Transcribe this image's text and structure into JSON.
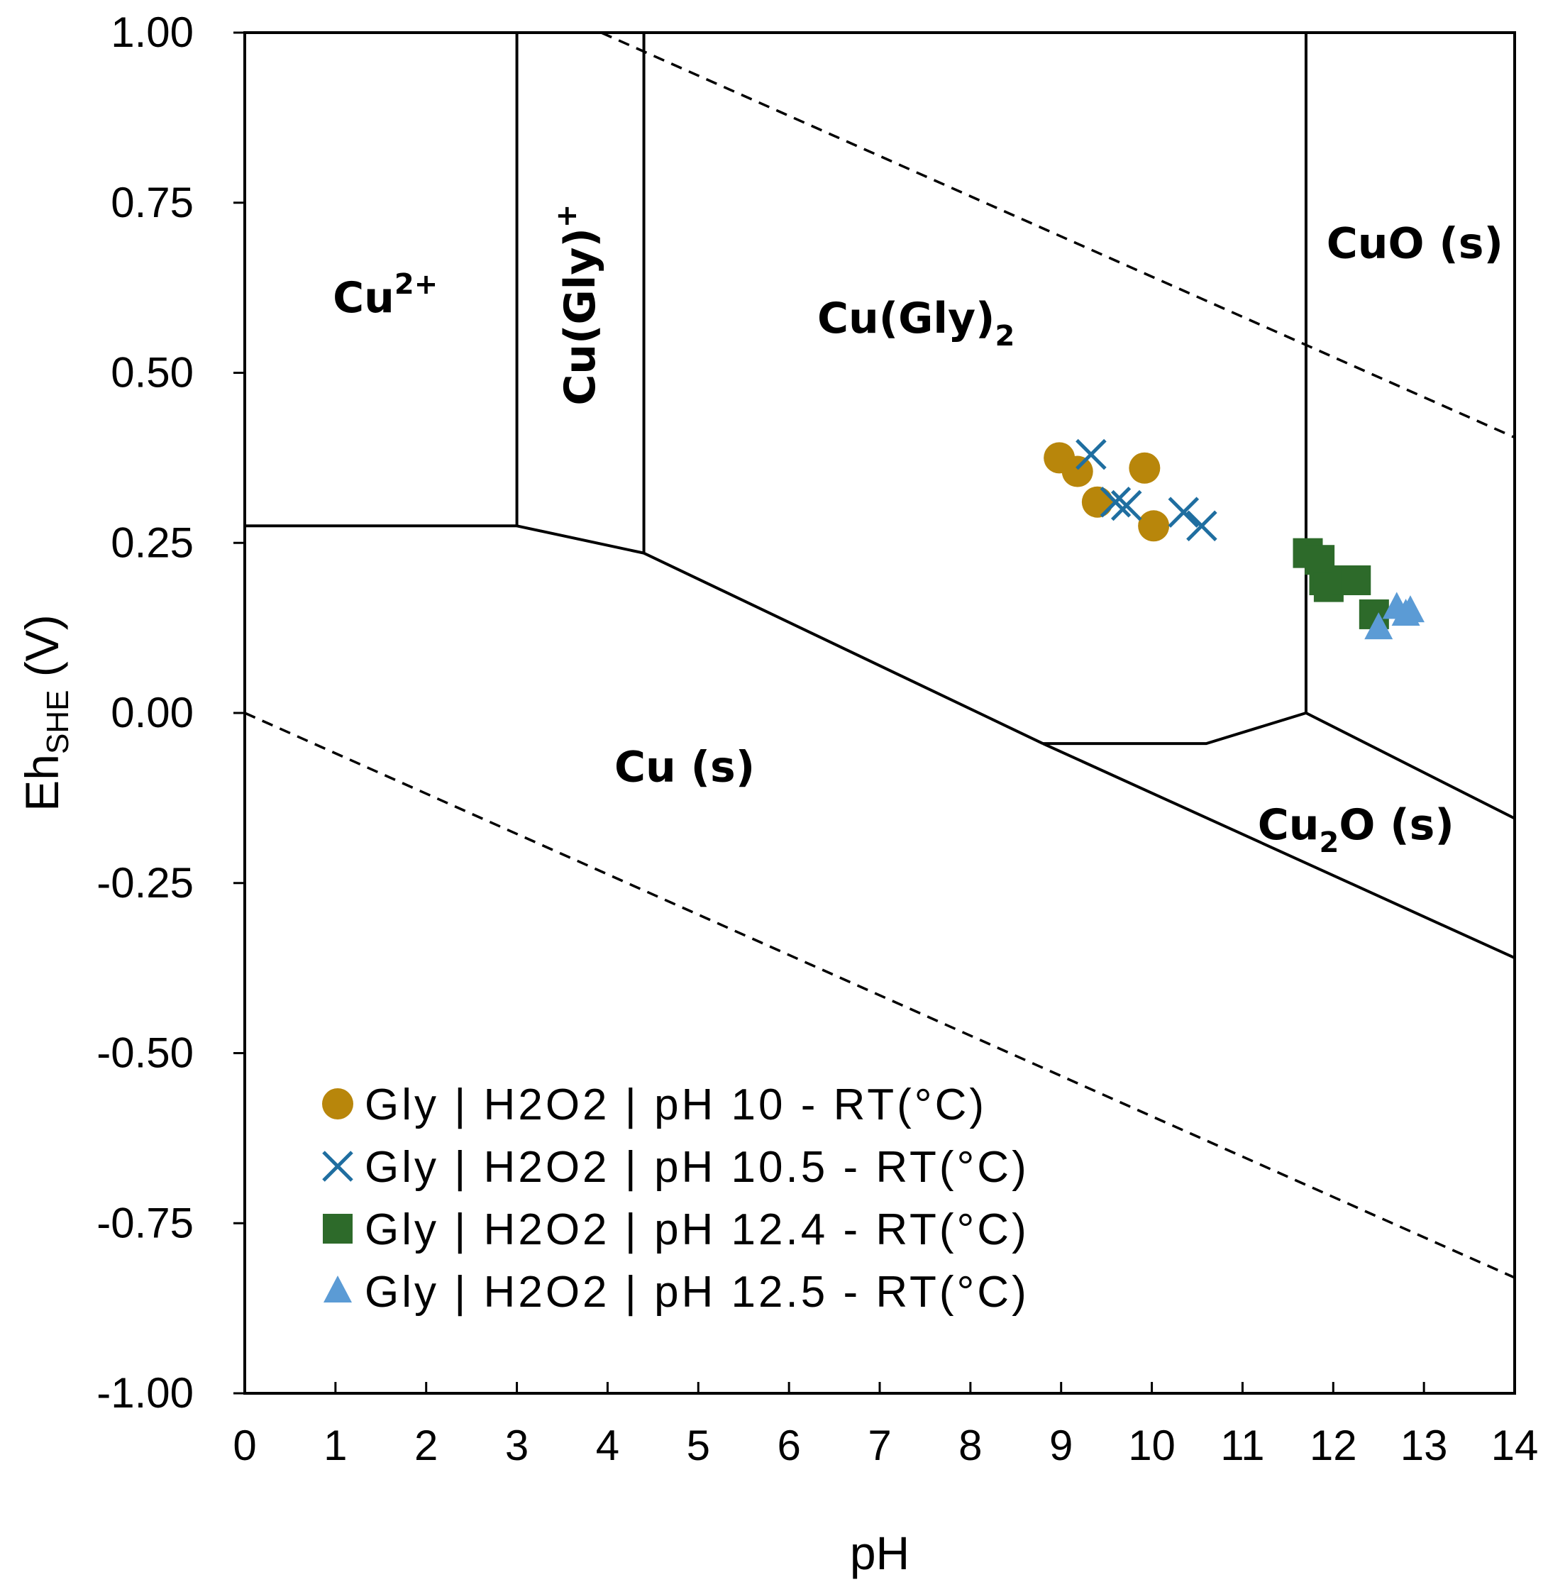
{
  "chart_data": {
    "type": "scatter",
    "subtype": "pourbaix-diagram",
    "xlabel": "pH",
    "ylabel": "Eh",
    "ylabel_sub": "SHE",
    "ylabel_unit": " (V)",
    "xlim": [
      0,
      14
    ],
    "ylim": [
      -1.0,
      1.0
    ],
    "x_ticks": [
      0,
      1,
      2,
      3,
      4,
      5,
      6,
      7,
      8,
      9,
      10,
      11,
      12,
      13,
      14
    ],
    "x_tick_labels": [
      "0",
      "1",
      "2",
      "3",
      "4",
      "5",
      "6",
      "7",
      "8",
      "9",
      "10",
      "11",
      "12",
      "13",
      "14"
    ],
    "y_ticks": [
      1.0,
      0.75,
      0.5,
      0.25,
      0.0,
      -0.25,
      -0.5,
      -0.75,
      -1.0
    ],
    "y_tick_labels": [
      "1.00",
      "0.75",
      "0.50",
      "0.25",
      "0.00",
      "-0.25",
      "-0.50",
      "-0.75",
      "-1.00"
    ],
    "grid": false,
    "legend_position": "bottom-left",
    "boundaries": [
      {
        "name": "cu2-cu-boundary",
        "points": [
          [
            0,
            0.275
          ],
          [
            3,
            0.275
          ]
        ]
      },
      {
        "name": "cu2-cugly-boundary",
        "points": [
          [
            3,
            0.275
          ],
          [
            3,
            1.0
          ]
        ]
      },
      {
        "name": "cugly-cugly2-boundary",
        "points": [
          [
            4.4,
            0.235
          ],
          [
            4.4,
            1.0
          ]
        ]
      },
      {
        "name": "cugly-cu-boundary",
        "points": [
          [
            3,
            0.275
          ],
          [
            4.4,
            0.235
          ]
        ]
      },
      {
        "name": "cugly2-cu-boundary",
        "points": [
          [
            4.4,
            0.235
          ],
          [
            8.8,
            -0.045
          ]
        ]
      },
      {
        "name": "cu-cu2o-boundary",
        "points": [
          [
            8.8,
            -0.045
          ],
          [
            14,
            -0.36
          ]
        ]
      },
      {
        "name": "cugly2-cu2o-boundary",
        "points": [
          [
            8.8,
            -0.045
          ],
          [
            10.6,
            -0.045
          ],
          [
            11.7,
            0.0
          ]
        ]
      },
      {
        "name": "cugly2-cuo-boundary",
        "points": [
          [
            11.7,
            0.0
          ],
          [
            11.7,
            1.0
          ]
        ]
      },
      {
        "name": "cu2o-cuo-boundary",
        "points": [
          [
            11.7,
            0.0
          ],
          [
            14,
            -0.155
          ]
        ]
      }
    ],
    "water_lines": [
      {
        "name": "oxygen-stability-line",
        "points": [
          [
            3.93,
            1.0
          ],
          [
            14,
            0.405
          ]
        ]
      },
      {
        "name": "hydrogen-stability-line",
        "points": [
          [
            0,
            0.0
          ],
          [
            14,
            -0.83
          ]
        ]
      }
    ],
    "region_labels": [
      {
        "base": "Cu",
        "sup": "2+",
        "sub": "",
        "suffix": "",
        "x": 1.55,
        "y": 0.61,
        "rotate": false
      },
      {
        "base": "Cu(Gly)",
        "sup": "+",
        "sub": "",
        "suffix": "",
        "x": 3.7,
        "y": 0.6,
        "rotate": true
      },
      {
        "base": "Cu(Gly)",
        "sup": "",
        "sub": "2",
        "suffix": "",
        "x": 7.4,
        "y": 0.58,
        "rotate": false
      },
      {
        "base": "CuO",
        "sup": "",
        "sub": "",
        "suffix": " (s)",
        "x": 12.9,
        "y": 0.69,
        "rotate": false
      },
      {
        "base": "Cu",
        "sup": "",
        "sub": "",
        "suffix": " (s)",
        "x": 4.85,
        "y": -0.08,
        "rotate": false
      },
      {
        "base": "Cu",
        "sup": "",
        "sub": "2",
        "suffix": "O (s)",
        "x": 12.25,
        "y": -0.165,
        "rotate": false
      }
    ],
    "series": [
      {
        "name": "Gly | H2O2 | pH 10 - RT(°C)",
        "marker": "circle",
        "color": "#b8860b",
        "points": [
          [
            8.98,
            0.375
          ],
          [
            9.18,
            0.355
          ],
          [
            9.4,
            0.31
          ],
          [
            9.92,
            0.36
          ],
          [
            10.02,
            0.275
          ]
        ]
      },
      {
        "name": "Gly | H2O2 | pH 10.5 - RT(°C)",
        "marker": "x",
        "color": "#1f6ea0",
        "points": [
          [
            9.33,
            0.38
          ],
          [
            9.6,
            0.31
          ],
          [
            9.72,
            0.305
          ],
          [
            10.35,
            0.295
          ],
          [
            10.55,
            0.275
          ]
        ]
      },
      {
        "name": "Gly | H2O2 | pH 12.4 - RT(°C)",
        "marker": "square",
        "color": "#2d6a2a",
        "points": [
          [
            11.72,
            0.235
          ],
          [
            11.85,
            0.225
          ],
          [
            11.9,
            0.195
          ],
          [
            11.95,
            0.185
          ],
          [
            12.15,
            0.195
          ],
          [
            12.25,
            0.195
          ],
          [
            12.45,
            0.145
          ]
        ]
      },
      {
        "name": "Gly | H2O2 | pH 12.5 - RT(°C)",
        "marker": "triangle",
        "color": "#5b9bd5",
        "points": [
          [
            12.5,
            0.125
          ],
          [
            12.7,
            0.155
          ],
          [
            12.8,
            0.145
          ],
          [
            12.85,
            0.15
          ]
        ]
      }
    ]
  }
}
